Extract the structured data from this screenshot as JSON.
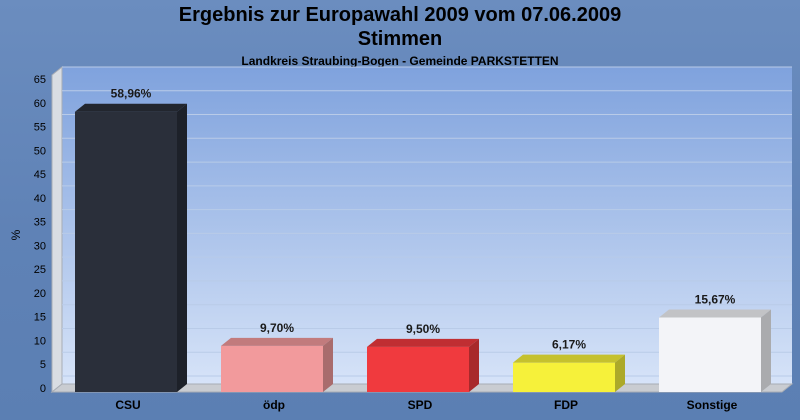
{
  "title": "Ergebnis zur Europawahl 2009 vom 07.06.2009",
  "title2": "Stimmen",
  "subtitle": "Landkreis Straubing-Bogen - Gemeinde PARKSTETTEN",
  "chart_data": {
    "type": "bar",
    "categories": [
      "CSU",
      "ödp",
      "SPD",
      "FDP",
      "Sonstige"
    ],
    "values": [
      58.96,
      9.7,
      9.5,
      6.17,
      15.67
    ],
    "value_labels": [
      "58,96%",
      "9,70%",
      "9,50%",
      "6,17%",
      "15,67%"
    ],
    "colors": [
      "#2a2f3a",
      "#f29a9c",
      "#f03a3e",
      "#f6f13a",
      "#f3f4f8"
    ],
    "ylabel": "%",
    "ylim": [
      0,
      65
    ],
    "yticks": [
      0,
      5,
      10,
      15,
      20,
      25,
      30,
      35,
      40,
      45,
      50,
      55,
      60,
      65
    ],
    "grid": true
  }
}
